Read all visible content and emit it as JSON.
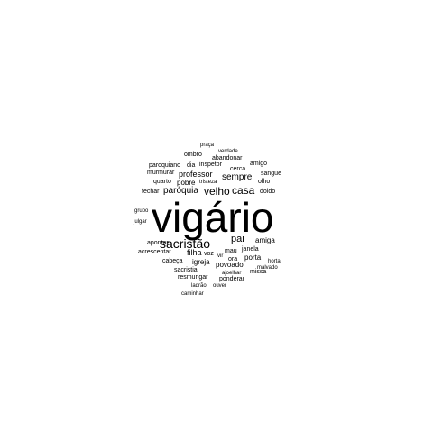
{
  "word_cloud": {
    "color": "#000000",
    "words": [
      {
        "text": "vigário",
        "weight": 100
      },
      {
        "text": "sacristão",
        "weight": 30
      },
      {
        "text": "casa",
        "weight": 24
      },
      {
        "text": "velho",
        "weight": 24
      },
      {
        "text": "paróquia",
        "weight": 20
      },
      {
        "text": "pai",
        "weight": 20
      },
      {
        "text": "sempre",
        "weight": 18
      },
      {
        "text": "professor",
        "weight": 17
      },
      {
        "text": "filha",
        "weight": 16
      },
      {
        "text": "igreja",
        "weight": 15
      },
      {
        "text": "povoado",
        "weight": 15
      },
      {
        "text": "porta",
        "weight": 15
      },
      {
        "text": "amiga",
        "weight": 14
      },
      {
        "text": "pobre",
        "weight": 14
      },
      {
        "text": "voz",
        "weight": 13
      },
      {
        "text": "cabeça",
        "weight": 13
      },
      {
        "text": "acrescentar",
        "weight": 13
      },
      {
        "text": "mau",
        "weight": 13
      },
      {
        "text": "janela",
        "weight": 13
      },
      {
        "text": "ora",
        "weight": 13
      },
      {
        "text": "doido",
        "weight": 12
      },
      {
        "text": "ombro",
        "weight": 12
      },
      {
        "text": "inspetor",
        "weight": 12
      },
      {
        "text": "abandonar",
        "weight": 12
      },
      {
        "text": "cerca",
        "weight": 12
      },
      {
        "text": "murmurar",
        "weight": 12
      },
      {
        "text": "resmungar",
        "weight": 12
      },
      {
        "text": "sacristia",
        "weight": 12
      },
      {
        "text": "missa",
        "weight": 12
      },
      {
        "text": "paroquiano",
        "weight": 11
      },
      {
        "text": "dia",
        "weight": 11
      },
      {
        "text": "amigo",
        "weight": 11
      },
      {
        "text": "sangue",
        "weight": 11
      },
      {
        "text": "quarto",
        "weight": 11
      },
      {
        "text": "olho",
        "weight": 11
      },
      {
        "text": "fechar",
        "weight": 11
      },
      {
        "text": "apontar",
        "weight": 11
      },
      {
        "text": "ponderar",
        "weight": 11
      },
      {
        "text": "julgar",
        "weight": 10
      },
      {
        "text": "grupo",
        "weight": 10
      },
      {
        "text": "praça",
        "weight": 10
      },
      {
        "text": "verdade",
        "weight": 10
      },
      {
        "text": "tristeza",
        "weight": 10
      },
      {
        "text": "vir",
        "weight": 10
      },
      {
        "text": "horta",
        "weight": 10
      },
      {
        "text": "malvado",
        "weight": 10
      },
      {
        "text": "ajoelhar",
        "weight": 10
      },
      {
        "text": "ladrão",
        "weight": 10
      },
      {
        "text": "ouver",
        "weight": 10
      },
      {
        "text": "caminhar",
        "weight": 10
      }
    ]
  }
}
